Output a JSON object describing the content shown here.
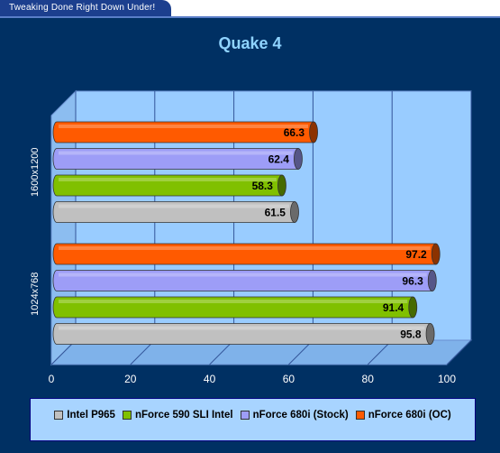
{
  "banner": {
    "text": "Tweaking Done Right Down Under!"
  },
  "chart_data": {
    "type": "bar",
    "orientation": "horizontal",
    "title": "Quake 4",
    "categories": [
      "1024x768",
      "1600x1200"
    ],
    "series": [
      {
        "name": "Intel P965",
        "color": "#c0c0c0",
        "values": [
          95.8,
          61.5
        ]
      },
      {
        "name": "nForce 590 SLI Intel",
        "color": "#80c000",
        "values": [
          91.4,
          58.3
        ]
      },
      {
        "name": "nForce 680i (Stock)",
        "color": "#9d9df7",
        "values": [
          96.3,
          62.4
        ]
      },
      {
        "name": "nForce 680i (OC)",
        "color": "#ff5a00",
        "values": [
          97.2,
          66.3
        ]
      }
    ],
    "xlim": [
      0,
      100
    ],
    "xticks": [
      "0",
      "20",
      "40",
      "60",
      "80",
      "100"
    ],
    "grid": true,
    "legend_position": "bottom",
    "plot_color": "#99ccff"
  }
}
